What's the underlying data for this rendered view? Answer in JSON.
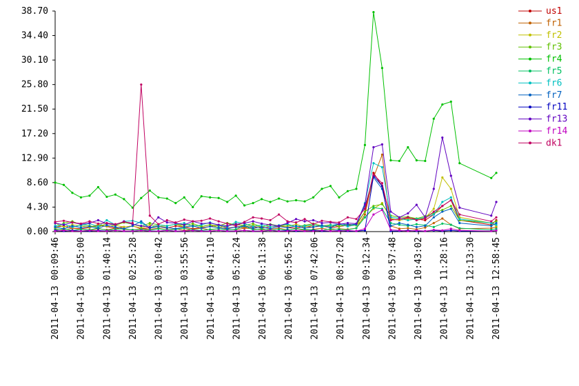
{
  "chart_data": {
    "type": "line",
    "x": [
      "2011-04-13 00:09:46",
      "2011-04-13 00:24:46",
      "2011-04-13 00:39:46",
      "2011-04-13 00:54:46",
      "2011-04-13 01:09:46",
      "2011-04-13 01:24:46",
      "2011-04-13 01:39:46",
      "2011-04-13 01:54:46",
      "2011-04-13 02:09:46",
      "2011-04-13 02:24:46",
      "2011-04-13 02:39:46",
      "2011-04-13 02:54:46",
      "2011-04-13 03:09:46",
      "2011-04-13 03:24:46",
      "2011-04-13 03:39:46",
      "2011-04-13 03:54:46",
      "2011-04-13 04:09:46",
      "2011-04-13 04:24:46",
      "2011-04-13 04:39:46",
      "2011-04-13 04:54:46",
      "2011-04-13 05:09:46",
      "2011-04-13 05:24:46",
      "2011-04-13 05:39:46",
      "2011-04-13 05:54:46",
      "2011-04-13 06:09:46",
      "2011-04-13 06:24:46",
      "2011-04-13 06:39:46",
      "2011-04-13 06:54:46",
      "2011-04-13 07:09:46",
      "2011-04-13 07:24:46",
      "2011-04-13 07:39:46",
      "2011-04-13 07:54:46",
      "2011-04-13 08:09:46",
      "2011-04-13 08:24:46",
      "2011-04-13 08:39:46",
      "2011-04-13 08:54:46",
      "2011-04-13 09:09:46",
      "2011-04-13 09:24:46",
      "2011-04-13 09:39:46",
      "2011-04-13 09:54:46",
      "2011-04-13 10:09:46",
      "2011-04-13 10:24:46",
      "2011-04-13 10:39:46",
      "2011-04-13 10:54:46",
      "2011-04-13 11:09:46",
      "2011-04-13 11:24:46",
      "2011-04-13 11:39:46",
      "2011-04-13 11:54:46",
      "2011-04-13 12:50:00",
      "2011-04-13 12:58:45"
    ],
    "xlim": [
      "2011-04-13 00:09:46",
      "2011-04-13 12:58:45"
    ],
    "xticks": [
      "2011-04-13 00:09:46",
      "2011-04-13 00:55:00",
      "2011-04-13 01:40:14",
      "2011-04-13 02:25:28",
      "2011-04-13 03:10:42",
      "2011-04-13 03:55:56",
      "2011-04-13 04:41:10",
      "2011-04-13 05:26:24",
      "2011-04-13 06:11:38",
      "2011-04-13 06:56:52",
      "2011-04-13 07:42:06",
      "2011-04-13 08:27:20",
      "2011-04-13 09:12:34",
      "2011-04-13 09:57:48",
      "2011-04-13 10:43:02",
      "2011-04-13 11:28:16",
      "2011-04-13 12:13:30",
      "2011-04-13 12:58:45"
    ],
    "ylim": [
      0,
      38.7
    ],
    "yticks": [
      {
        "value": 0,
        "label": "0.00"
      },
      {
        "value": 4.3,
        "label": "4.30"
      },
      {
        "value": 8.6,
        "label": "8.60"
      },
      {
        "value": 12.9,
        "label": "12.90"
      },
      {
        "value": 17.2,
        "label": "17.20"
      },
      {
        "value": 21.5,
        "label": "21.50"
      },
      {
        "value": 25.8,
        "label": "25.80"
      },
      {
        "value": 30.1,
        "label": "30.10"
      },
      {
        "value": 34.4,
        "label": "34.40"
      },
      {
        "value": 38.7,
        "label": "38.70"
      }
    ],
    "legend": "right",
    "series": [
      {
        "name": "us1",
        "color": "#c00000",
        "values": [
          0.8,
          1.0,
          0.6,
          0.5,
          0.7,
          1.1,
          0.9,
          0.6,
          0.8,
          1.0,
          0.5,
          0.7,
          0.9,
          0.6,
          1.0,
          0.8,
          0.5,
          0.7,
          0.9,
          1.1,
          0.6,
          0.8,
          0.7,
          0.9,
          0.6,
          0.8,
          1.0,
          0.7,
          0.6,
          0.9,
          0.8,
          1.0,
          0.7,
          0.9,
          1.1,
          1.3,
          3.5,
          10.3,
          8.0,
          2.2,
          2.0,
          2.4,
          2.2,
          2.0,
          3.0,
          4.5,
          5.5,
          2.0,
          1.2,
          2.0
        ]
      },
      {
        "name": "fr1",
        "color": "#c06000",
        "values": [
          0.5,
          0.3,
          0.6,
          0.4,
          0.2,
          0.5,
          0.3,
          0.6,
          0.4,
          0.3,
          0.5,
          0.4,
          0.6,
          0.3,
          0.5,
          0.2,
          0.4,
          0.6,
          0.3,
          0.5,
          0.4,
          0.3,
          0.6,
          0.5,
          0.3,
          0.4,
          0.6,
          0.3,
          0.5,
          0.2,
          0.4,
          0.6,
          0.3,
          0.5,
          0.4,
          0.6,
          3.0,
          9.5,
          13.5,
          1.0,
          0.5,
          0.6,
          0.4,
          0.7,
          1.5,
          2.3,
          1.2,
          0.5,
          0.6,
          0.8
        ]
      },
      {
        "name": "fr2",
        "color": "#c0c000",
        "values": [
          1.5,
          0.8,
          1.2,
          1.0,
          0.7,
          1.3,
          0.9,
          1.1,
          0.8,
          1.0,
          0.6,
          1.2,
          0.9,
          1.0,
          1.3,
          0.8,
          1.1,
          0.9,
          1.2,
          0.7,
          1.0,
          1.4,
          0.9,
          1.1,
          0.8,
          1.2,
          1.0,
          0.9,
          1.3,
          0.8,
          1.1,
          1.0,
          0.9,
          1.2,
          1.0,
          1.1,
          2.5,
          4.0,
          5.0,
          2.3,
          2.0,
          2.2,
          2.1,
          2.4,
          4.0,
          9.5,
          7.5,
          2.5,
          1.5,
          1.0
        ]
      },
      {
        "name": "fr3",
        "color": "#60c000",
        "values": [
          0.6,
          1.5,
          1.8,
          1.2,
          1.0,
          0.8,
          1.4,
          1.1,
          1.6,
          1.3,
          0.9,
          1.5,
          1.2,
          1.0,
          1.3,
          1.1,
          1.4,
          0.9,
          1.2,
          1.0,
          1.5,
          1.2,
          1.1,
          1.4,
          0.8,
          1.3,
          1.0,
          1.2,
          0.9,
          1.1,
          1.4,
          1.0,
          1.2,
          0.9,
          1.3,
          1.1,
          3.5,
          4.5,
          4.8,
          2.8,
          2.5,
          2.6,
          2.3,
          2.7,
          3.2,
          3.8,
          4.5,
          2.0,
          1.5,
          1.8
        ]
      },
      {
        "name": "fr4",
        "color": "#00c000",
        "values": [
          8.6,
          8.2,
          6.8,
          6.0,
          6.3,
          7.8,
          6.1,
          6.5,
          5.7,
          4.2,
          5.9,
          7.2,
          6.0,
          5.8,
          5.0,
          6.0,
          4.3,
          6.2,
          6.0,
          5.9,
          5.2,
          6.3,
          4.6,
          5.0,
          5.7,
          5.2,
          5.8,
          5.3,
          5.5,
          5.3,
          6.0,
          7.5,
          8.0,
          6.0,
          7.1,
          7.5,
          15.2,
          38.5,
          28.7,
          12.5,
          12.4,
          14.8,
          12.5,
          12.4,
          19.8,
          22.3,
          22.8,
          12.0,
          9.4,
          10.3
        ]
      },
      {
        "name": "fr5",
        "color": "#00c060",
        "values": [
          0.3,
          0.5,
          0.2,
          0.4,
          0.3,
          0.6,
          0.2,
          0.4,
          0.5,
          0.3,
          0.4,
          0.2,
          0.5,
          0.3,
          0.4,
          0.6,
          0.3,
          0.2,
          0.4,
          0.5,
          0.3,
          0.4,
          1.0,
          0.3,
          0.5,
          0.2,
          0.4,
          0.3,
          0.5,
          0.4,
          0.3,
          0.2,
          0.5,
          0.4,
          0.3,
          0.6,
          2.5,
          4.2,
          4.0,
          1.5,
          1.2,
          1.0,
          1.3,
          1.1,
          0.8,
          1.4,
          1.2,
          0.6,
          0.3,
          0.5
        ]
      },
      {
        "name": "fr6",
        "color": "#00c0c0",
        "values": [
          1.0,
          1.3,
          0.8,
          1.1,
          1.4,
          0.9,
          2.0,
          1.2,
          1.8,
          1.9,
          1.5,
          0.7,
          1.2,
          1.0,
          1.3,
          1.5,
          0.9,
          1.2,
          1.6,
          1.1,
          0.8,
          1.7,
          1.4,
          0.9,
          1.2,
          0.8,
          1.1,
          1.3,
          0.9,
          1.0,
          1.2,
          0.8,
          1.1,
          1.3,
          0.9,
          1.2,
          5.0,
          12.0,
          11.3,
          2.5,
          2.3,
          2.0,
          2.2,
          2.5,
          3.0,
          5.2,
          6.0,
          2.2,
          1.5,
          1.2
        ]
      },
      {
        "name": "fr7",
        "color": "#0060c0",
        "values": [
          0.8,
          0.5,
          1.0,
          0.7,
          0.9,
          0.6,
          1.1,
          0.8,
          0.5,
          1.0,
          1.8,
          0.6,
          0.9,
          0.7,
          0.5,
          0.8,
          1.0,
          0.6,
          0.9,
          0.7,
          0.5,
          0.8,
          1.0,
          0.6,
          0.8,
          0.5,
          0.9,
          0.7,
          1.0,
          0.6,
          0.8,
          1.1,
          0.7,
          1.4,
          1.2,
          1.3,
          4.5,
          9.5,
          7.5,
          1.0,
          1.5,
          1.2,
          0.8,
          1.0,
          2.5,
          3.5,
          4.0,
          1.5,
          1.0,
          1.5
        ]
      },
      {
        "name": "fr11",
        "color": "#0000c0",
        "values": [
          0.2,
          0.1,
          0.2,
          0.1,
          0.1,
          0.2,
          0.1,
          0.2,
          0.1,
          0.1,
          0.2,
          0.1,
          0.1,
          0.2,
          0.1,
          0.1,
          0.2,
          0.1,
          0.1,
          0.2,
          0.1,
          0.1,
          0.2,
          0.1,
          0.1,
          0.2,
          0.1,
          0.2,
          0.1,
          0.1,
          0.2,
          0.1,
          0.1,
          0.2,
          0.1,
          0.1,
          0.2,
          9.8,
          8.0,
          0.1,
          0.1,
          0.2,
          0.1,
          0.1,
          0.2,
          0.1,
          0.2,
          0.1,
          0.1,
          0.2
        ]
      },
      {
        "name": "fr13",
        "color": "#6000c0",
        "values": [
          1.5,
          1.2,
          1.6,
          1.3,
          1.5,
          2.0,
          1.4,
          1.2,
          1.8,
          1.3,
          1.0,
          0.8,
          2.5,
          1.6,
          1.5,
          1.2,
          1.8,
          1.4,
          1.5,
          1.2,
          1.0,
          1.3,
          1.5,
          1.8,
          1.4,
          1.2,
          1.0,
          1.5,
          2.2,
          1.8,
          2.0,
          1.5,
          1.6,
          1.3,
          1.5,
          1.4,
          4.8,
          14.8,
          15.3,
          3.5,
          2.5,
          3.2,
          4.7,
          2.5,
          7.5,
          16.5,
          9.8,
          4.2,
          2.8,
          5.2
        ]
      },
      {
        "name": "fr14",
        "color": "#c000c0",
        "values": [
          0.1,
          0.2,
          0.1,
          0.1,
          0.2,
          0.1,
          0.1,
          0.2,
          0.1,
          0.1,
          0.2,
          0.1,
          0.1,
          0.2,
          0.1,
          0.1,
          0.2,
          0.1,
          0.1,
          0.2,
          0.1,
          0.1,
          0.2,
          0.1,
          0.1,
          0.2,
          0.1,
          0.1,
          0.2,
          0.1,
          0.1,
          0.2,
          0.1,
          0.1,
          0.2,
          0.1,
          0.5,
          3.0,
          3.8,
          0.3,
          0.2,
          0.1,
          0.2,
          0.1,
          0.3,
          0.2,
          0.5,
          0.2,
          0.1,
          0.2
        ]
      },
      {
        "name": "dk1",
        "color": "#c00060",
        "values": [
          1.7,
          1.9,
          1.6,
          1.4,
          1.8,
          1.4,
          1.5,
          1.3,
          1.7,
          1.5,
          25.8,
          2.8,
          1.3,
          2.0,
          1.6,
          2.1,
          1.8,
          1.9,
          2.3,
          1.8,
          1.4,
          1.0,
          1.7,
          2.5,
          2.3,
          2.0,
          3.0,
          1.8,
          1.6,
          2.2,
          1.3,
          1.9,
          1.7,
          1.6,
          2.5,
          2.2,
          4.0,
          10.0,
          8.5,
          2.0,
          2.2,
          2.5,
          2.0,
          2.3,
          3.5,
          4.5,
          5.5,
          3.0,
          1.8,
          2.5
        ]
      }
    ]
  }
}
